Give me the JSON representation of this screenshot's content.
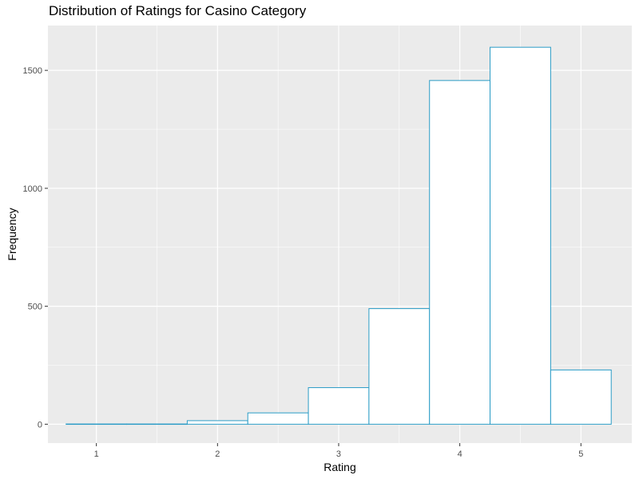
{
  "chart_data": {
    "type": "bar",
    "title": "Distribution of Ratings for Casino Category",
    "xlabel": "Rating",
    "ylabel": "Frequency",
    "bin_width": 0.5,
    "bins": [
      {
        "start": 0.75,
        "end": 1.25,
        "value": 1
      },
      {
        "start": 1.25,
        "end": 1.75,
        "value": 1
      },
      {
        "start": 1.75,
        "end": 2.25,
        "value": 15
      },
      {
        "start": 2.25,
        "end": 2.75,
        "value": 48
      },
      {
        "start": 2.75,
        "end": 3.25,
        "value": 155
      },
      {
        "start": 3.25,
        "end": 3.75,
        "value": 490
      },
      {
        "start": 3.75,
        "end": 4.25,
        "value": 1457
      },
      {
        "start": 4.25,
        "end": 4.75,
        "value": 1598
      },
      {
        "start": 4.75,
        "end": 5.25,
        "value": 230
      }
    ],
    "xlim": [
      0.6,
      5.42
    ],
    "ylim": [
      -80,
      1690
    ],
    "x_ticks": [
      1,
      2,
      3,
      4,
      5
    ],
    "y_ticks": [
      0,
      500,
      1000,
      1500
    ],
    "x_tick_labels": [
      "1",
      "2",
      "3",
      "4",
      "5"
    ],
    "y_tick_labels": [
      "0",
      "500",
      "1000",
      "1500"
    ],
    "grid": true,
    "bar_fill": "#ffffff",
    "bar_outline": "#2b9cc6",
    "panel_background": "#ebebeb",
    "gridline_color": "#ffffff"
  }
}
